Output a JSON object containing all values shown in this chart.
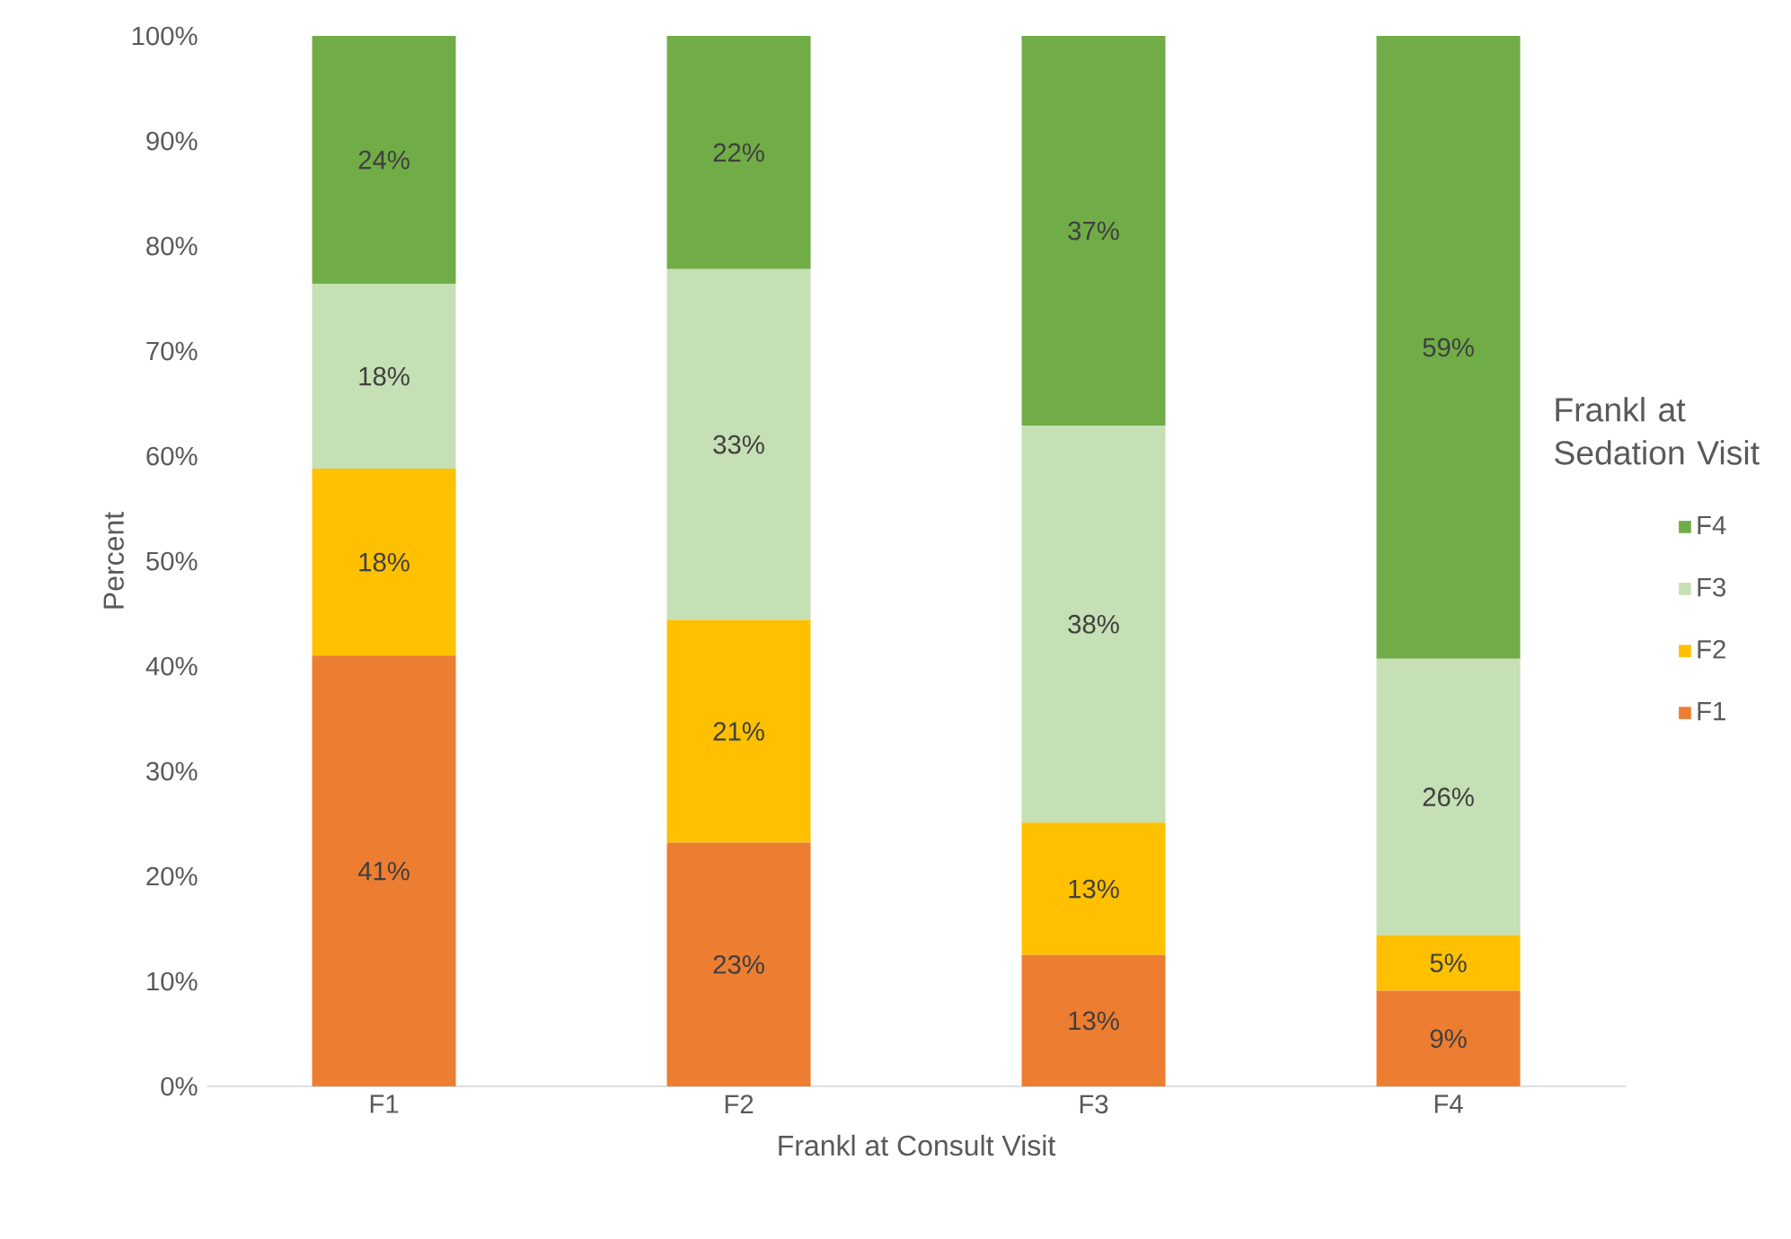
{
  "chart_data": {
    "type": "bar",
    "stacked": true,
    "xlabel": "Frankl at Consult Visit",
    "ylabel": "Percent",
    "legend_title": "Frankl at Sedation Visit",
    "legend": "right",
    "categories": [
      "F1",
      "F2",
      "F3",
      "F4"
    ],
    "ylim": [
      0,
      100
    ],
    "yticks": [
      {
        "value": 0,
        "label": "0%"
      },
      {
        "value": 10,
        "label": "10%"
      },
      {
        "value": 20,
        "label": "20%"
      },
      {
        "value": 30,
        "label": "30%"
      },
      {
        "value": 40,
        "label": "40%"
      },
      {
        "value": 50,
        "label": "50%"
      },
      {
        "value": 60,
        "label": "60%"
      },
      {
        "value": 70,
        "label": "70%"
      },
      {
        "value": 80,
        "label": "80%"
      },
      {
        "value": 90,
        "label": "90%"
      },
      {
        "value": 100,
        "label": "100%"
      }
    ],
    "series": [
      {
        "name": "F1",
        "color": "#ed7d31",
        "values": [
          41.0,
          23.2,
          12.5,
          9.1
        ],
        "value_labels": [
          "41%",
          "23%",
          "13%",
          "9%"
        ]
      },
      {
        "name": "F2",
        "color": "#ffc000",
        "values": [
          17.8,
          21.2,
          12.6,
          5.3
        ],
        "value_labels": [
          "18%",
          "21%",
          "13%",
          "5%"
        ]
      },
      {
        "name": "F3",
        "color": "#c5e0b4",
        "values": [
          17.6,
          33.4,
          37.8,
          26.3
        ],
        "value_labels": [
          "18%",
          "33%",
          "38%",
          "26%"
        ]
      },
      {
        "name": "F4",
        "color": "#70ad47",
        "values": [
          23.6,
          22.2,
          37.1,
          59.3
        ],
        "value_labels": [
          "24%",
          "22%",
          "37%",
          "59%"
        ]
      }
    ]
  }
}
